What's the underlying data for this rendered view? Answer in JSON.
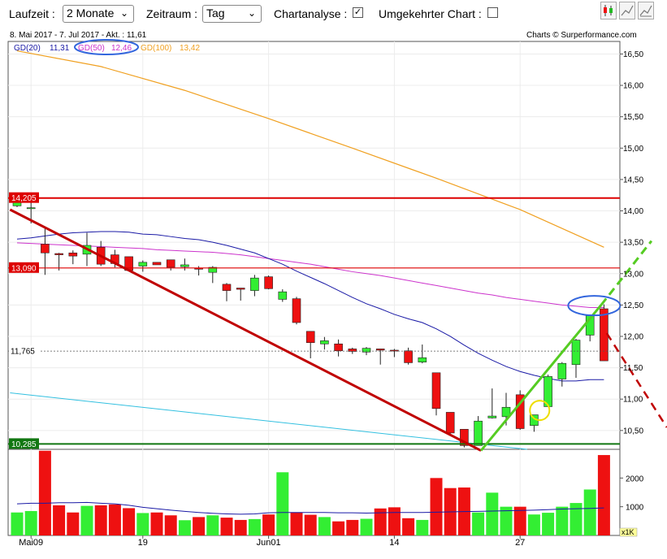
{
  "toolbar": {
    "laufzeit_label": "Laufzeit :",
    "laufzeit_value": "2 Monate",
    "zeitraum_label": "Zeitraum :",
    "zeitraum_value": "Tag",
    "chartanalyse_label": "Chartanalyse :",
    "chartanalyse_checked": "✓",
    "umgekehrt_label": "Umgekehrter Chart :",
    "icons": [
      "candlestick-icon",
      "line-chart-icon",
      "area-chart-icon"
    ]
  },
  "header": {
    "period": "8. Mai 2017 - 7. Jul 2017 - Akt. : 11,61",
    "credit": "Charts © Surperformance.com"
  },
  "legend": {
    "gd20_label": "GD(20)",
    "gd20_value": "11,31",
    "gd50_label": "GD(50)",
    "gd50_value": "12,46",
    "gd100_label": "GD(100)",
    "gd100_value": "13,42"
  },
  "colors": {
    "up": "#33ee33",
    "down": "#ee1111",
    "gd20": "#1a1aa6",
    "gd50": "#cc33cc",
    "gd100": "#f0a020",
    "channel": "#33c0e0",
    "resistance": "#dd0000",
    "support": "#117711",
    "downtrend": "#c00000",
    "uptrend": "#55cc22",
    "highlight": "#3366dd",
    "marker": "#eedd00"
  },
  "chart_data": {
    "type": "candlestick",
    "y_range": [
      10.2,
      16.7
    ],
    "y_ticks": [
      "16,50",
      "16,00",
      "15,50",
      "15,00",
      "14,50",
      "14,00",
      "13,50",
      "13,00",
      "12,50",
      "12,00",
      "11,50",
      "11,00",
      "10,50"
    ],
    "x_tick_labels": [
      {
        "label": "Mai09",
        "index": 1
      },
      {
        "label": "19",
        "index": 9
      },
      {
        "label": "Jun01",
        "index": 18
      },
      {
        "label": "14",
        "index": 27
      },
      {
        "label": "27",
        "index": 36
      }
    ],
    "candles": [
      {
        "o": 14.08,
        "h": 14.2,
        "l": 14.06,
        "c": 14.15
      },
      {
        "o": 14.05,
        "h": 14.13,
        "l": 13.8,
        "c": 14.05
      },
      {
        "o": 13.47,
        "h": 13.75,
        "l": 12.98,
        "c": 13.33
      },
      {
        "o": 13.32,
        "h": 13.33,
        "l": 13.05,
        "c": 13.3
      },
      {
        "o": 13.33,
        "h": 13.37,
        "l": 13.15,
        "c": 13.28
      },
      {
        "o": 13.31,
        "h": 13.65,
        "l": 13.12,
        "c": 13.45
      },
      {
        "o": 13.42,
        "h": 13.52,
        "l": 13.12,
        "c": 13.15
      },
      {
        "o": 13.3,
        "h": 13.38,
        "l": 13.1,
        "c": 13.16
      },
      {
        "o": 13.27,
        "h": 13.27,
        "l": 13.05,
        "c": 13.05
      },
      {
        "o": 13.12,
        "h": 13.21,
        "l": 13.03,
        "c": 13.18
      },
      {
        "o": 13.18,
        "h": 13.18,
        "l": 13.14,
        "c": 13.14
      },
      {
        "o": 13.22,
        "h": 13.22,
        "l": 13.05,
        "c": 13.1
      },
      {
        "o": 13.11,
        "h": 13.24,
        "l": 13.05,
        "c": 13.14
      },
      {
        "o": 13.09,
        "h": 13.12,
        "l": 12.97,
        "c": 13.07
      },
      {
        "o": 13.02,
        "h": 13.12,
        "l": 12.85,
        "c": 13.1
      },
      {
        "o": 12.83,
        "h": 12.85,
        "l": 12.56,
        "c": 12.73
      },
      {
        "o": 12.77,
        "h": 12.77,
        "l": 12.57,
        "c": 12.75
      },
      {
        "o": 12.73,
        "h": 12.98,
        "l": 12.64,
        "c": 12.93
      },
      {
        "o": 12.95,
        "h": 12.97,
        "l": 12.75,
        "c": 12.76
      },
      {
        "o": 12.59,
        "h": 12.75,
        "l": 12.55,
        "c": 12.71
      },
      {
        "o": 12.6,
        "h": 12.63,
        "l": 12.19,
        "c": 12.22
      },
      {
        "o": 12.08,
        "h": 12.08,
        "l": 11.65,
        "c": 11.9
      },
      {
        "o": 11.88,
        "h": 11.99,
        "l": 11.79,
        "c": 11.93
      },
      {
        "o": 11.88,
        "h": 11.95,
        "l": 11.68,
        "c": 11.77
      },
      {
        "o": 11.8,
        "h": 11.82,
        "l": 11.72,
        "c": 11.76
      },
      {
        "o": 11.75,
        "h": 11.83,
        "l": 11.7,
        "c": 11.81
      },
      {
        "o": 11.8,
        "h": 11.8,
        "l": 11.55,
        "c": 11.78
      },
      {
        "o": 11.78,
        "h": 11.8,
        "l": 11.67,
        "c": 11.77
      },
      {
        "o": 11.77,
        "h": 11.82,
        "l": 11.55,
        "c": 11.58
      },
      {
        "o": 11.59,
        "h": 11.87,
        "l": 11.57,
        "c": 11.66
      },
      {
        "o": 11.42,
        "h": 11.42,
        "l": 10.74,
        "c": 10.85
      },
      {
        "o": 10.79,
        "h": 10.79,
        "l": 10.44,
        "c": 10.46
      },
      {
        "o": 10.52,
        "h": 10.52,
        "l": 10.23,
        "c": 10.26
      },
      {
        "o": 10.26,
        "h": 10.73,
        "l": 10.26,
        "c": 10.65
      },
      {
        "o": 10.7,
        "h": 11.17,
        "l": 10.69,
        "c": 10.73
      },
      {
        "o": 10.72,
        "h": 11.1,
        "l": 10.58,
        "c": 10.87
      },
      {
        "o": 11.07,
        "h": 11.14,
        "l": 10.51,
        "c": 10.53
      },
      {
        "o": 10.58,
        "h": 10.75,
        "l": 10.48,
        "c": 10.75
      },
      {
        "o": 10.88,
        "h": 11.39,
        "l": 10.88,
        "c": 11.36
      },
      {
        "o": 11.32,
        "h": 11.59,
        "l": 11.2,
        "c": 11.57
      },
      {
        "o": 11.55,
        "h": 11.96,
        "l": 11.34,
        "c": 11.94
      },
      {
        "o": 12.02,
        "h": 12.35,
        "l": 11.92,
        "c": 12.33
      },
      {
        "o": 12.44,
        "h": 12.51,
        "l": 11.61,
        "c": 11.61
      }
    ],
    "gd20": [
      13.55,
      13.57,
      13.6,
      13.63,
      13.65,
      13.66,
      13.67,
      13.67,
      13.66,
      13.63,
      13.62,
      13.59,
      13.56,
      13.54,
      13.5,
      13.45,
      13.39,
      13.33,
      13.24,
      13.15,
      13.04,
      12.94,
      12.84,
      12.73,
      12.62,
      12.52,
      12.44,
      12.35,
      12.28,
      12.22,
      12.12,
      12.0,
      11.86,
      11.73,
      11.62,
      11.52,
      11.44,
      11.38,
      11.33,
      11.29,
      11.29,
      11.31,
      11.31
    ],
    "gd50": [
      13.49,
      13.48,
      13.47,
      13.46,
      13.45,
      13.44,
      13.43,
      13.42,
      13.41,
      13.4,
      13.38,
      13.37,
      13.36,
      13.35,
      13.34,
      13.32,
      13.3,
      13.27,
      13.24,
      13.21,
      13.18,
      13.15,
      13.11,
      13.07,
      13.03,
      13.0,
      12.97,
      12.93,
      12.89,
      12.85,
      12.81,
      12.77,
      12.73,
      12.69,
      12.66,
      12.62,
      12.59,
      12.56,
      12.53,
      12.5,
      12.48,
      12.46,
      12.46
    ],
    "gd100": [
      {
        "x": 0,
        "y": 16.55
      },
      {
        "x": 6,
        "y": 16.3
      },
      {
        "x": 12,
        "y": 15.92
      },
      {
        "x": 18,
        "y": 15.47
      },
      {
        "x": 24,
        "y": 15.0
      },
      {
        "x": 30,
        "y": 14.52
      },
      {
        "x": 36,
        "y": 14.02
      },
      {
        "x": 42,
        "y": 13.42
      }
    ],
    "channel": [
      {
        "x": -0.5,
        "y": 11.1
      },
      {
        "x": 36.5,
        "y": 10.2
      }
    ],
    "resistance_levels": [
      {
        "value": 14.205,
        "label": "14,205"
      },
      {
        "value": 13.09,
        "label": "13,090"
      }
    ],
    "support_level": {
      "value": 10.285,
      "label": "10,285"
    },
    "current_level": {
      "value": 11.765,
      "label": "11,765"
    },
    "downtrend": [
      {
        "x": -0.5,
        "y": 14.02
      },
      {
        "x": 33.2,
        "y": 10.18
      }
    ],
    "uptrend": {
      "solid": [
        {
          "x": 33.2,
          "y": 10.18
        },
        {
          "x": 41.8,
          "y": 12.5
        }
      ],
      "dashed": [
        {
          "x": 41.8,
          "y": 12.5
        },
        {
          "x": 45.4,
          "y": 13.52
        }
      ]
    },
    "downtrend_projection": [
      {
        "x": 42.2,
        "y": 12.05
      },
      {
        "x": 46.5,
        "y": 10.55
      }
    ],
    "volume": {
      "y_range": [
        0,
        3000
      ],
      "y_ticks": [
        {
          "value": 2000,
          "label": "2000"
        },
        {
          "value": 1000,
          "label": "1000"
        }
      ],
      "unit_label": "x1K",
      "values": [
        800,
        850,
        2950,
        1050,
        800,
        1030,
        1050,
        1080,
        950,
        780,
        800,
        700,
        530,
        640,
        700,
        620,
        540,
        570,
        730,
        2200,
        800,
        720,
        640,
        490,
        540,
        580,
        940,
        980,
        600,
        540,
        2000,
        1650,
        1670,
        800,
        1490,
        1000,
        1000,
        730,
        790,
        1000,
        1130,
        1600,
        2800
      ],
      "avg": [
        1100,
        1120,
        1120,
        1140,
        1140,
        1150,
        1120,
        1100,
        1050,
        980,
        930,
        880,
        840,
        800,
        770,
        750,
        740,
        750,
        790,
        800,
        800,
        800,
        800,
        790,
        790,
        780,
        790,
        800,
        800,
        800,
        810,
        820,
        830,
        840,
        850,
        860,
        870,
        880,
        900,
        920,
        930,
        940,
        960
      ]
    }
  }
}
